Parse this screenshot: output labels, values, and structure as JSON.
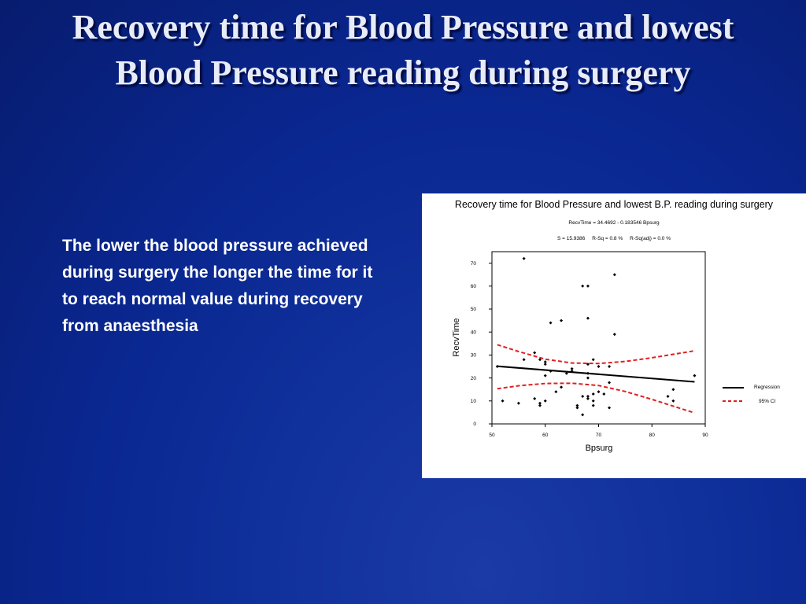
{
  "slide": {
    "title": "Recovery time for Blood Pressure and lowest Blood Pressure reading during surgery",
    "body_text": "The lower the blood pressure achieved during surgery the longer the time for it to reach normal value during recovery from anaesthesia"
  },
  "colors": {
    "regression": "#000000",
    "ci": "#e02020"
  },
  "chart_data": {
    "type": "scatter",
    "title": "Recovery time for Blood Pressure and lowest B.P. reading during surgery",
    "subtitle": "RecvTime = 34.4692 - 0.183546 Bpsurg",
    "stats": "S = 15.9386     R-Sq = 0.8 %     R-Sq(adj) = 0.0 %",
    "xlabel": "Bpsurg",
    "ylabel": "RecvTime",
    "xlim": [
      50,
      90
    ],
    "ylim": [
      0,
      75
    ],
    "xticks": [
      50,
      60,
      70,
      80,
      90
    ],
    "yticks": [
      0,
      10,
      20,
      30,
      40,
      50,
      60,
      70
    ],
    "points": [
      [
        51,
        25
      ],
      [
        52,
        10
      ],
      [
        55,
        9
      ],
      [
        56,
        72
      ],
      [
        56,
        28
      ],
      [
        58,
        31
      ],
      [
        58,
        11
      ],
      [
        59,
        28
      ],
      [
        59,
        9
      ],
      [
        59,
        8
      ],
      [
        60,
        27
      ],
      [
        60,
        26
      ],
      [
        60,
        21
      ],
      [
        60,
        10
      ],
      [
        61,
        44
      ],
      [
        61,
        23
      ],
      [
        62,
        14
      ],
      [
        63,
        45
      ],
      [
        63,
        16
      ],
      [
        64,
        22
      ],
      [
        65,
        23
      ],
      [
        65,
        24
      ],
      [
        66,
        8
      ],
      [
        66,
        7
      ],
      [
        67,
        60
      ],
      [
        67,
        12
      ],
      [
        67,
        4
      ],
      [
        68,
        60
      ],
      [
        68,
        46
      ],
      [
        68,
        26
      ],
      [
        68,
        22
      ],
      [
        68,
        20
      ],
      [
        68,
        12
      ],
      [
        68,
        11
      ],
      [
        69,
        28
      ],
      [
        69,
        13
      ],
      [
        69,
        10
      ],
      [
        69,
        8
      ],
      [
        70,
        14
      ],
      [
        70,
        25
      ],
      [
        71,
        13
      ],
      [
        72,
        18
      ],
      [
        72,
        7
      ],
      [
        72,
        25
      ],
      [
        73,
        65
      ],
      [
        73,
        39
      ],
      [
        83,
        12
      ],
      [
        84,
        15
      ],
      [
        84,
        10
      ],
      [
        88,
        21
      ]
    ],
    "regression": {
      "intercept": 34.4692,
      "slope": -0.183546
    },
    "ci_upper": [
      [
        51,
        34.5
      ],
      [
        55,
        31.5
      ],
      [
        60,
        28.2
      ],
      [
        65,
        26.5
      ],
      [
        70,
        26.3
      ],
      [
        75,
        27.2
      ],
      [
        80,
        28.8
      ],
      [
        85,
        30.7
      ],
      [
        88,
        31.8
      ]
    ],
    "ci_lower": [
      [
        51,
        15.3
      ],
      [
        55,
        16.6
      ],
      [
        60,
        17.6
      ],
      [
        65,
        17.7
      ],
      [
        70,
        16.7
      ],
      [
        75,
        14.1
      ],
      [
        80,
        10.7
      ],
      [
        85,
        7.0
      ],
      [
        88,
        4.8
      ]
    ],
    "legend": [
      {
        "label": "Regression",
        "style": "solid"
      },
      {
        "label": "95% CI",
        "style": "dashed"
      }
    ],
    "legend_position": "right",
    "grid": false
  }
}
